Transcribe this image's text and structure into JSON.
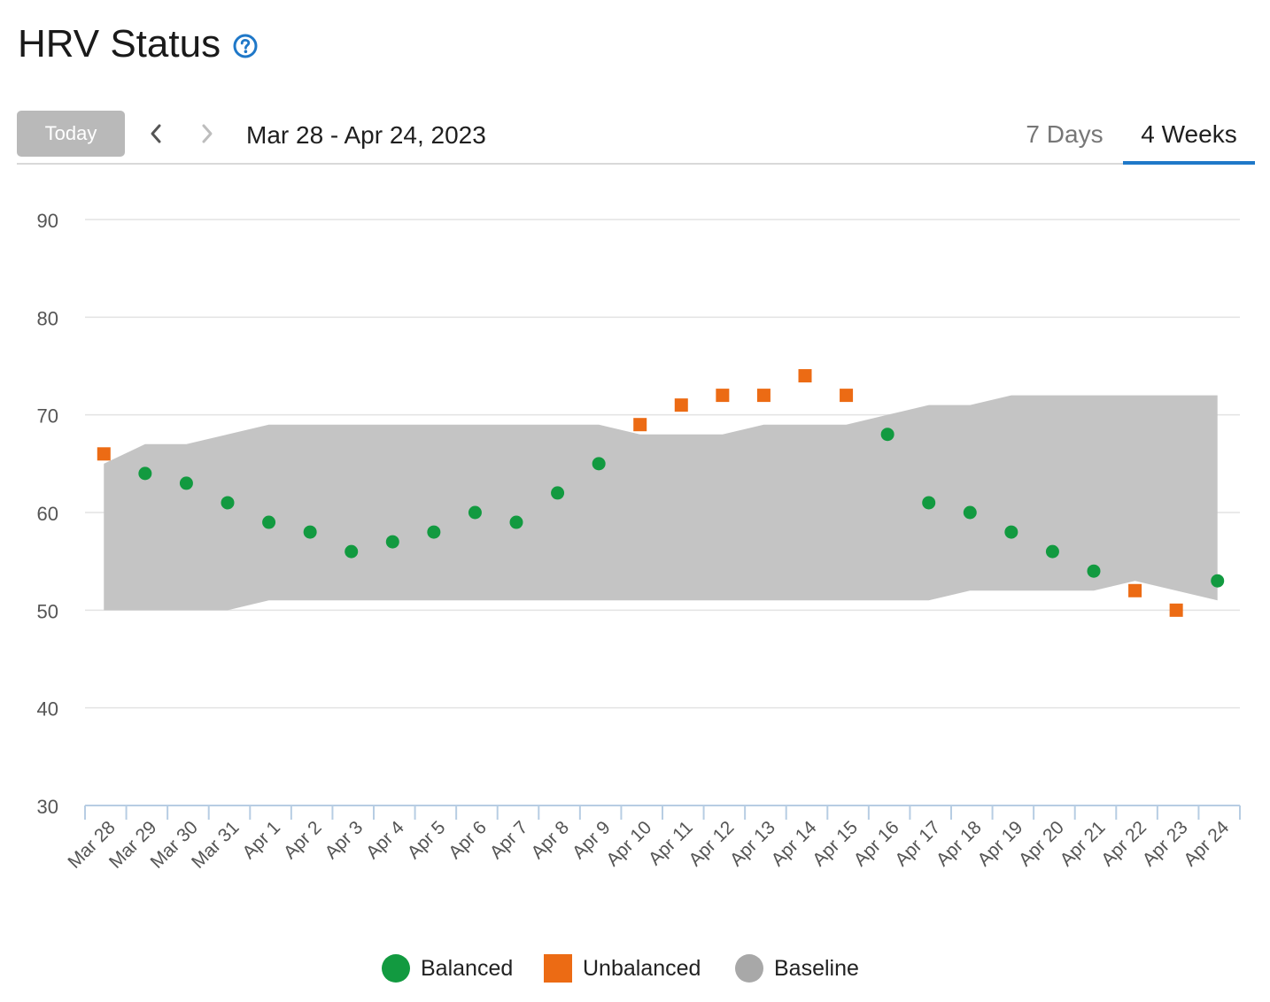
{
  "header": {
    "title": "HRV Status",
    "help_icon": "question-circle-icon"
  },
  "toolbar": {
    "today_label": "Today",
    "prev_icon": "chevron-left-icon",
    "next_icon": "chevron-right-icon",
    "date_range": "Mar 28 - Apr 24, 2023",
    "tabs": [
      {
        "label": "7 Days",
        "active": false
      },
      {
        "label": "4 Weeks",
        "active": true
      }
    ]
  },
  "colors": {
    "balanced": "#129a40",
    "unbalanced": "#ec6b14",
    "baseline": "#c4c4c4",
    "accent": "#1f78c8"
  },
  "chart_data": {
    "type": "scatter",
    "title": "",
    "xlabel": "",
    "ylabel": "",
    "ylim": [
      30,
      90
    ],
    "yticks": [
      30,
      40,
      50,
      60,
      70,
      80,
      90
    ],
    "grid": true,
    "legend_position": "bottom-center",
    "categories": [
      "Mar 28",
      "Mar 29",
      "Mar 30",
      "Mar 31",
      "Apr 1",
      "Apr 2",
      "Apr 3",
      "Apr 4",
      "Apr 5",
      "Apr 6",
      "Apr 7",
      "Apr 8",
      "Apr 9",
      "Apr 10",
      "Apr 11",
      "Apr 12",
      "Apr 13",
      "Apr 14",
      "Apr 15",
      "Apr 16",
      "Apr 17",
      "Apr 18",
      "Apr 19",
      "Apr 20",
      "Apr 21",
      "Apr 22",
      "Apr 23",
      "Apr 24"
    ],
    "values": [
      66,
      64,
      63,
      61,
      59,
      58,
      56,
      57,
      58,
      60,
      59,
      62,
      65,
      69,
      71,
      72,
      72,
      74,
      72,
      68,
      61,
      60,
      58,
      56,
      54,
      52,
      50,
      53
    ],
    "status": [
      "unbalanced",
      "balanced",
      "balanced",
      "balanced",
      "balanced",
      "balanced",
      "balanced",
      "balanced",
      "balanced",
      "balanced",
      "balanced",
      "balanced",
      "balanced",
      "unbalanced",
      "unbalanced",
      "unbalanced",
      "unbalanced",
      "unbalanced",
      "unbalanced",
      "balanced",
      "balanced",
      "balanced",
      "balanced",
      "balanced",
      "balanced",
      "unbalanced",
      "unbalanced",
      "balanced"
    ],
    "baseline_upper": [
      65,
      67,
      67,
      68,
      69,
      69,
      69,
      69,
      69,
      69,
      69,
      69,
      69,
      68,
      68,
      68,
      69,
      69,
      69,
      70,
      71,
      71,
      72,
      72,
      72,
      72,
      72,
      72
    ],
    "baseline_lower": [
      50,
      50,
      50,
      50,
      51,
      51,
      51,
      51,
      51,
      51,
      51,
      51,
      51,
      51,
      51,
      51,
      51,
      51,
      51,
      51,
      51,
      52,
      52,
      52,
      52,
      53,
      52,
      51
    ],
    "legend": [
      {
        "name": "Balanced",
        "marker": "circle",
        "color": "#129a40"
      },
      {
        "name": "Unbalanced",
        "marker": "square",
        "color": "#ec6b14"
      },
      {
        "name": "Baseline",
        "marker": "circle",
        "color": "#a8a8a8"
      }
    ]
  }
}
